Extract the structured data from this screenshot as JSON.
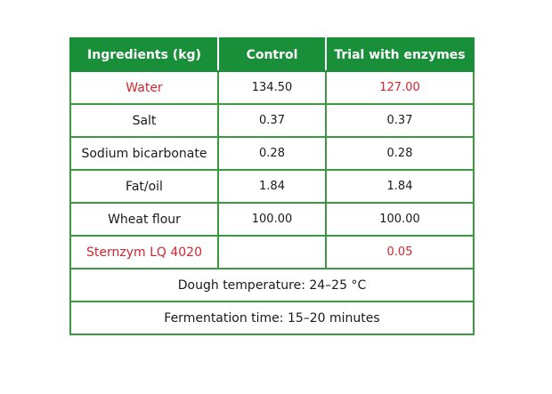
{
  "table": {
    "headers": [
      "Ingredients (kg)",
      "Control",
      "Trial with enzymes"
    ],
    "rows": [
      {
        "ingredient": "Water",
        "control": "134.50",
        "trial": "127.00",
        "highlight": true
      },
      {
        "ingredient": "Salt",
        "control": "0.37",
        "trial": "0.37",
        "highlight": false
      },
      {
        "ingredient": "Sodium bicarbonate",
        "control": "0.28",
        "trial": "0.28",
        "highlight": false
      },
      {
        "ingredient": "Fat/oil",
        "control": "1.84",
        "trial": "1.84",
        "highlight": false
      },
      {
        "ingredient": "Wheat flour",
        "control": "100.00",
        "trial": "100.00",
        "highlight": false
      },
      {
        "ingredient": "Sternzym LQ 4020",
        "control": "",
        "trial": "0.05",
        "highlight": true
      }
    ],
    "notes": [
      "Dough temperature: 24–25 °C",
      "Fermentation time: 15–20 minutes"
    ]
  },
  "colors": {
    "header_bg": "#198f3a",
    "border": "#3b9a40",
    "highlight_text": "#d22630"
  }
}
